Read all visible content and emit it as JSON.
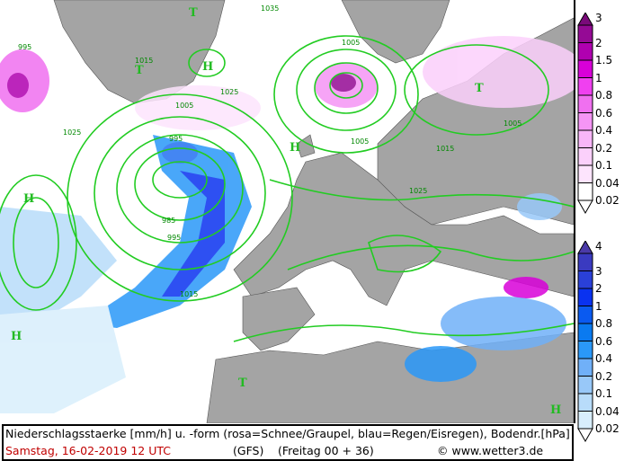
{
  "footer": {
    "description": "Niederschlagsstaerke [mm/h] u. -form (rosa=Schnee/Graupel, blau=Regen/Eisregen), Bodendr.[hPa]",
    "date": "Samstag, 16-02-2019  12 UTC",
    "model": "(GFS)",
    "run": "(Freitag 00 + 36)",
    "copyright": "© www.wetter3.de"
  },
  "legend_snow": {
    "labels": [
      "3",
      "2",
      "1.5",
      "1",
      "0.8",
      "0.6",
      "0.4",
      "0.2",
      "0.1",
      "0.04",
      "0.02"
    ],
    "colors": [
      "#7a0a7a",
      "#950a95",
      "#b000b0",
      "#d800d8",
      "#f040f0",
      "#f070f0",
      "#f595f5",
      "#f8b6f8",
      "#fbd0fb",
      "#fde4fd",
      "#fff"
    ]
  },
  "legend_rain": {
    "labels": [
      "4",
      "3",
      "2",
      "1",
      "0.8",
      "0.6",
      "0.4",
      "0.2",
      "0.1",
      "0.04",
      "0.02"
    ],
    "colors": [
      "#4b3aa8",
      "#3a3ac0",
      "#2a40d8",
      "#0a32f0",
      "#0a5af0",
      "#0a7af0",
      "#2a98f8",
      "#70b0f8",
      "#98c8f8",
      "#b8dcfa",
      "#d8eefc"
    ]
  },
  "map": {
    "colors": {
      "land": "#a4a4a4",
      "sea": "#ffffff",
      "isobar": "#22cc22"
    },
    "isobar_labels": [
      "995",
      "1015",
      "1025",
      "1005",
      "1025",
      "995",
      "1005",
      "985",
      "995",
      "1015",
      "1005",
      "1035",
      "1025",
      "1015",
      "1005"
    ],
    "pressure_centers": [
      "H",
      "T",
      "H",
      "T",
      "H",
      "T",
      "H",
      "T",
      "H"
    ]
  }
}
